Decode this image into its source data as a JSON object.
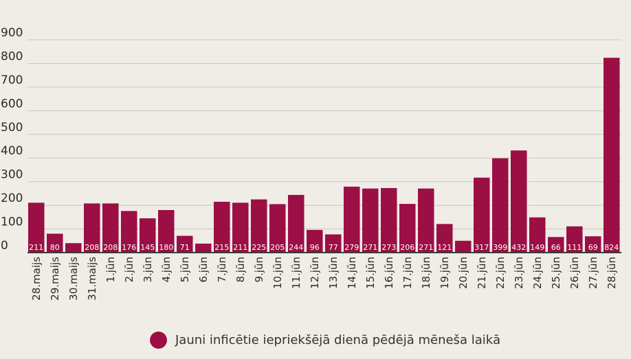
{
  "chart_data": {
    "type": "bar",
    "categories": [
      "28.maijs",
      "29.maijs",
      "30.maijs",
      "31.maijs",
      "1.jūn",
      "2.jūn",
      "3.jūn",
      "4.jūn",
      "5.jūn",
      "6.jūn",
      "7.jūn",
      "8.jūn",
      "9.jūn",
      "10.jūn",
      "11.jūn",
      "12.jūn",
      "13.jūn",
      "14.jūn",
      "15.jūn",
      "16.jūn",
      "17.jūn",
      "18.jūn",
      "19.jūn",
      "20.jūn",
      "21.jūn",
      "22.jūn",
      "23.jūn",
      "24.jūn",
      "25.jūn",
      "26.jūn",
      "27.jūn",
      "28.jūn"
    ],
    "series": [
      {
        "name": "Jauni inficētie iepriekšējā dienā pēdējā mēneša laikā",
        "values": [
          211,
          80,
          40,
          208,
          208,
          176,
          145,
          180,
          71,
          38,
          215,
          211,
          225,
          205,
          244,
          96,
          77,
          279,
          271,
          273,
          206,
          271,
          121,
          50,
          317,
          399,
          432,
          149,
          66,
          111,
          69,
          824
        ],
        "value_labels": [
          "211",
          "80",
          "",
          "208",
          "208",
          "176",
          "145",
          "180",
          "71",
          "",
          "215",
          "211",
          "225",
          "205",
          "244",
          "96",
          "77",
          "279",
          "271",
          "273",
          "206",
          "271",
          "121",
          "",
          "317",
          "399",
          "432",
          "149",
          "66",
          "111",
          "69",
          "824"
        ]
      }
    ],
    "y_ticks": [
      "0",
      "100",
      "200",
      "300",
      "400",
      "500",
      "600",
      "700",
      "800",
      "900"
    ],
    "ylim": [
      0,
      900
    ],
    "grid": true,
    "legend_position": "bottom",
    "bar_color": "#9b0f45"
  }
}
